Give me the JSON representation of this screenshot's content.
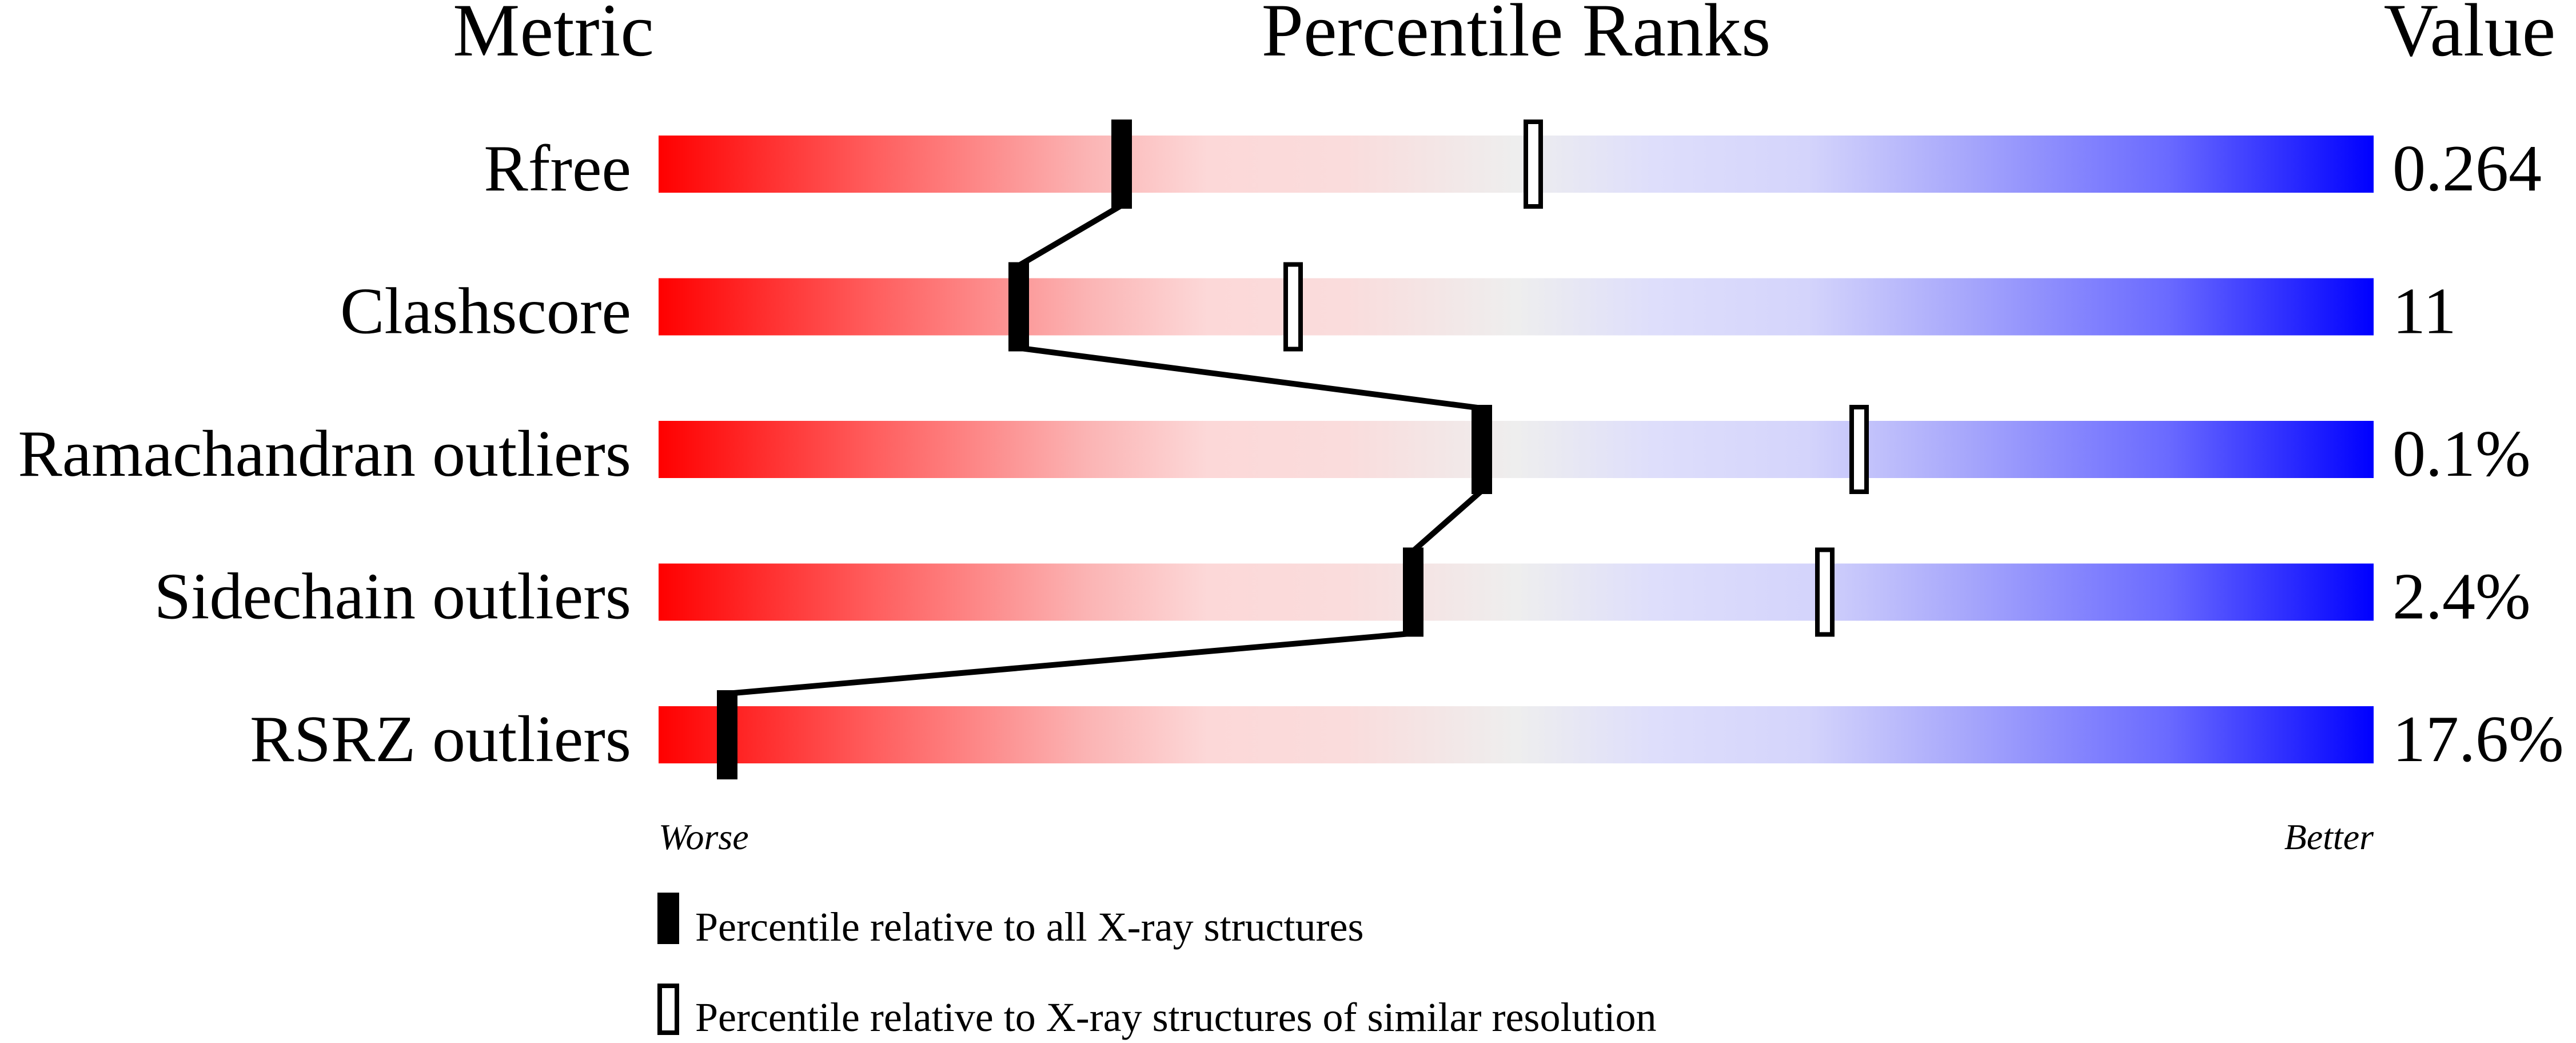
{
  "chart_data": {
    "type": "bar",
    "headers": {
      "metric": "Metric",
      "ranks": "Percentile Ranks",
      "value": "Value"
    },
    "metrics": [
      {
        "name": "Rfree",
        "value": "0.264",
        "percentile_all": 27,
        "percentile_similar": 51
      },
      {
        "name": "Clashscore",
        "value": "11",
        "percentile_all": 21,
        "percentile_similar": 37
      },
      {
        "name": "Ramachandran outliers",
        "value": "0.1%",
        "percentile_all": 48,
        "percentile_similar": 70
      },
      {
        "name": "Sidechain outliers",
        "value": "2.4%",
        "percentile_all": 44,
        "percentile_similar": 68
      },
      {
        "name": "RSRZ outliers",
        "value": "17.6%",
        "percentile_all": 4,
        "percentile_similar": 4
      }
    ],
    "xlim": [
      0,
      100
    ],
    "axis_labels": {
      "worse": "Worse",
      "better": "Better"
    },
    "legend": {
      "all": "Percentile relative to all X-ray structures",
      "similar": "Percentile relative to X-ray structures of similar resolution"
    },
    "colors": {
      "worse": "#ff0000",
      "middle": "#eeeeee",
      "better": "#0000ff",
      "marker": "#000000"
    }
  }
}
